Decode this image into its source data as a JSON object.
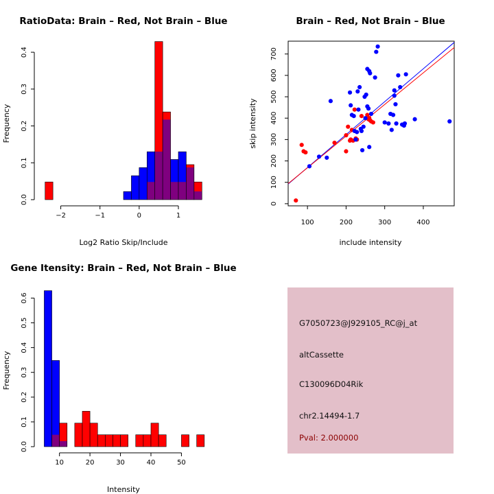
{
  "colors": {
    "red": "#ff0000",
    "blue": "#0000ff",
    "overlap": "#7f007f",
    "info_bg": "#e3bfc9",
    "pval": "#8b0000"
  },
  "chart_data": [
    {
      "type": "histogram",
      "title": "RatioData: Brain – Red, Not Brain – Blue",
      "xlabel": "Log2 Ratio Skip/Include",
      "ylabel": "Frequency",
      "xlim": [
        -2.5,
        1.7
      ],
      "ylim": [
        0,
        0.43
      ],
      "xticks": [
        -2,
        -1,
        0,
        1
      ],
      "xtick_labels": [
        "−2",
        "−1",
        "0",
        "1"
      ],
      "yticks": [
        0,
        0.1,
        0.2,
        0.3,
        0.4
      ],
      "ytick_labels": [
        "0.0",
        "0.1",
        "0.2",
        "0.3",
        "0.4"
      ],
      "bins": [
        -2.4,
        -2.2,
        -2.0,
        -1.8,
        -1.6,
        -1.4,
        -1.2,
        -1.0,
        -0.8,
        -0.6,
        -0.4,
        -0.2,
        0.0,
        0.2,
        0.4,
        0.6,
        0.8,
        1.0,
        1.2,
        1.4,
        1.6
      ],
      "series": [
        {
          "name": "Brain",
          "color": "red",
          "values": [
            0.048,
            0,
            0,
            0,
            0,
            0,
            0,
            0,
            0,
            0,
            0,
            0,
            0,
            0.048,
            0.429,
            0.238,
            0.048,
            0.048,
            0.095,
            0.048
          ]
        },
        {
          "name": "Not Brain",
          "color": "blue",
          "values": [
            0,
            0,
            0,
            0,
            0,
            0,
            0,
            0,
            0,
            0,
            0.022,
            0.065,
            0.087,
            0.13,
            0.13,
            0.217,
            0.109,
            0.13,
            0.087,
            0.022
          ]
        }
      ]
    },
    {
      "type": "scatter",
      "title": "Brain – Red, Not Brain – Blue",
      "xlabel": "include intensity",
      "ylabel": "skip intensity",
      "xlim": [
        50,
        480
      ],
      "ylim": [
        -10,
        760
      ],
      "xticks": [
        100,
        200,
        300,
        400
      ],
      "yticks": [
        0,
        100,
        200,
        300,
        400,
        500,
        600,
        700
      ],
      "lines": [
        {
          "color": "blue",
          "intercept": 15,
          "slope": 1.54
        },
        {
          "color": "red",
          "intercept": 20,
          "slope": 1.48
        }
      ],
      "series": [
        {
          "name": "Brain",
          "color": "red",
          "points": [
            [
              70,
              15
            ],
            [
              85,
              275
            ],
            [
              90,
              245
            ],
            [
              95,
              240
            ],
            [
              170,
              285
            ],
            [
              200,
              320
            ],
            [
              200,
              245
            ],
            [
              205,
              360
            ],
            [
              210,
              295
            ],
            [
              212,
              300
            ],
            [
              215,
              345
            ],
            [
              218,
              295
            ],
            [
              222,
              440
            ],
            [
              225,
              305
            ],
            [
              228,
              300
            ],
            [
              240,
              410
            ],
            [
              255,
              415
            ],
            [
              258,
              395
            ],
            [
              260,
              400
            ],
            [
              262,
              390
            ],
            [
              265,
              385
            ],
            [
              270,
              380
            ]
          ]
        },
        {
          "name": "Not Brain",
          "color": "blue",
          "points": [
            [
              105,
              175
            ],
            [
              130,
              220
            ],
            [
              150,
              215
            ],
            [
              160,
              480
            ],
            [
              210,
              520
            ],
            [
              212,
              460
            ],
            [
              215,
              415
            ],
            [
              220,
              410
            ],
            [
              222,
              340
            ],
            [
              225,
              300
            ],
            [
              228,
              335
            ],
            [
              230,
              525
            ],
            [
              232,
              440
            ],
            [
              235,
              545
            ],
            [
              238,
              350
            ],
            [
              240,
              340
            ],
            [
              242,
              250
            ],
            [
              245,
              360
            ],
            [
              248,
              500
            ],
            [
              250,
              400
            ],
            [
              252,
              510
            ],
            [
              255,
              455
            ],
            [
              255,
              630
            ],
            [
              258,
              445
            ],
            [
              260,
              265
            ],
            [
              260,
              620
            ],
            [
              262,
              610
            ],
            [
              265,
              420
            ],
            [
              275,
              590
            ],
            [
              278,
              710
            ],
            [
              282,
              735
            ],
            [
              300,
              380
            ],
            [
              310,
              375
            ],
            [
              315,
              420
            ],
            [
              318,
              345
            ],
            [
              322,
              415
            ],
            [
              325,
              530
            ],
            [
              325,
              505
            ],
            [
              328,
              465
            ],
            [
              330,
              375
            ],
            [
              335,
              600
            ],
            [
              340,
              545
            ],
            [
              345,
              370
            ],
            [
              350,
              365
            ],
            [
              352,
              375
            ],
            [
              355,
              605
            ],
            [
              378,
              395
            ],
            [
              468,
              385
            ]
          ]
        }
      ]
    },
    {
      "type": "histogram",
      "title": "Gene Itensity: Brain – Red, Not Brain – Blue",
      "xlabel": "Intensity",
      "ylabel": "Frequency",
      "xlim": [
        4,
        58
      ],
      "ylim": [
        0,
        0.64
      ],
      "xticks": [
        10,
        20,
        30,
        40,
        50
      ],
      "yticks": [
        0,
        0.1,
        0.2,
        0.3,
        0.4,
        0.5,
        0.6
      ],
      "ytick_labels": [
        "0.0",
        "0.1",
        "0.2",
        "0.3",
        "0.4",
        "0.5",
        "0.6"
      ],
      "bins": [
        5,
        7.5,
        10,
        12.5,
        15,
        17.5,
        20,
        22.5,
        25,
        27.5,
        30,
        32.5,
        35,
        37.5,
        40,
        42.5,
        45,
        47.5,
        50,
        52.5,
        55,
        57.5
      ],
      "series": [
        {
          "name": "Brain",
          "color": "red",
          "values": [
            0,
            0.048,
            0.095,
            0,
            0.095,
            0.143,
            0.095,
            0.048,
            0.048,
            0.048,
            0.048,
            0,
            0.048,
            0.048,
            0.095,
            0.048,
            0,
            0,
            0.048,
            0,
            0.048
          ]
        },
        {
          "name": "Not Brain",
          "color": "blue",
          "values": [
            0.63,
            0.348,
            0.022,
            0,
            0,
            0,
            0,
            0,
            0,
            0,
            0,
            0,
            0,
            0,
            0,
            0,
            0,
            0,
            0,
            0,
            0
          ]
        }
      ]
    }
  ],
  "info": {
    "probe": "G7050723@J929105_RC@j_at",
    "event_type": "altCassette",
    "gene": "C130096D04Rik",
    "location": "chr2.14494-1.7",
    "pval": "Pval: 2.000000"
  }
}
